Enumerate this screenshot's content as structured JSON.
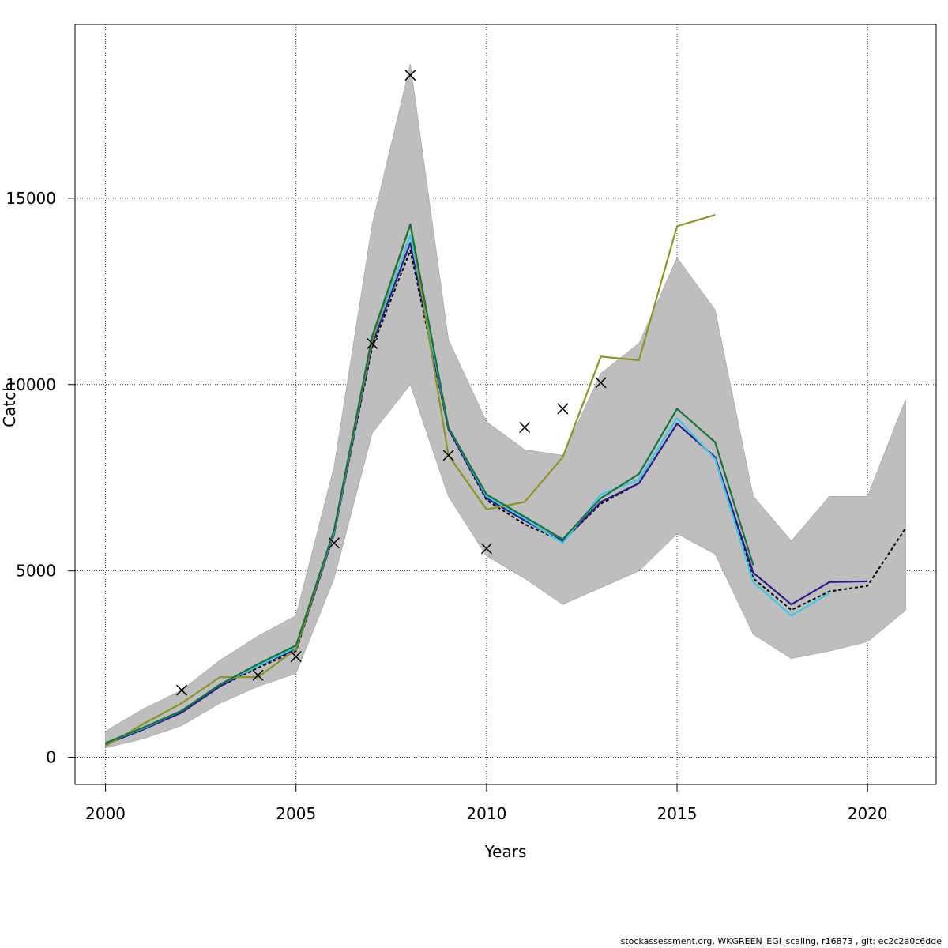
{
  "chart_data": {
    "type": "line",
    "xlabel": "Years",
    "ylabel": "Catch",
    "xlim": [
      1999.2,
      2021.8
    ],
    "ylim": [
      -730,
      19660
    ],
    "x_ticks": [
      "2000",
      "2005",
      "2010",
      "2015",
      "2020"
    ],
    "y_ticks": [
      "0",
      "5000",
      "10000",
      "15000"
    ],
    "grid": true,
    "band": {
      "color": "#bebebe",
      "x": [
        2000,
        2001,
        2002,
        2003,
        2004,
        2005,
        2006,
        2007,
        2008,
        2009,
        2010,
        2011,
        2012,
        2013,
        2014,
        2015,
        2016,
        2017,
        2018,
        2019,
        2020,
        2021
      ],
      "upper": [
        700,
        1300,
        1800,
        2600,
        3250,
        3800,
        7800,
        14300,
        18600,
        11200,
        9000,
        8250,
        8100,
        10300,
        11100,
        13400,
        12000,
        7000,
        5800,
        7000,
        7000,
        9600
      ],
      "lower": [
        250,
        500,
        850,
        1450,
        1900,
        2250,
        4800,
        8700,
        10000,
        7000,
        5400,
        4800,
        4100,
        4550,
        5000,
        6000,
        5450,
        3300,
        2650,
        2850,
        3100,
        3950
      ]
    },
    "observed": {
      "marker": "x",
      "x": [
        2002,
        2004,
        2005,
        2006,
        2007,
        2008,
        2009,
        2010,
        2011,
        2012,
        2013
      ],
      "y": [
        1800,
        2200,
        2700,
        5750,
        11100,
        18300,
        8100,
        5600,
        8850,
        9350,
        10050
      ]
    },
    "series": [
      {
        "color": "#000000",
        "dashed": true,
        "x": [
          2000,
          2001,
          2002,
          2003,
          2004,
          2005,
          2006,
          2007,
          2008,
          2009,
          2010,
          2011,
          2012,
          2013,
          2014,
          2015,
          2016,
          2017,
          2018,
          2019,
          2020,
          2021
        ],
        "y": [
          350,
          750,
          1200,
          1900,
          2400,
          2850,
          6000,
          11000,
          13600,
          8800,
          6900,
          6250,
          5800,
          6800,
          7350,
          8950,
          8050,
          4800,
          3950,
          4450,
          4600,
          6150
        ]
      },
      {
        "color": "#2a1a8c",
        "x": [
          2000,
          2001,
          2002,
          2003,
          2004,
          2005,
          2006,
          2007,
          2008,
          2009,
          2010,
          2011,
          2012,
          2013,
          2014,
          2015,
          2016,
          2017,
          2018,
          2019,
          2020
        ],
        "y": [
          350,
          750,
          1200,
          1900,
          2450,
          2900,
          6000,
          11100,
          13800,
          8800,
          6950,
          6350,
          5800,
          6850,
          7350,
          8950,
          8050,
          4950,
          4100,
          4700,
          4720
        ]
      },
      {
        "color": "#3ec7e6",
        "x": [
          2000,
          2001,
          2002,
          2003,
          2004,
          2005,
          2006,
          2007,
          2008,
          2009,
          2010,
          2011,
          2012,
          2013,
          2014,
          2015,
          2016,
          2017,
          2018,
          2019
        ],
        "y": [
          380,
          780,
          1250,
          1950,
          2450,
          2950,
          6050,
          11200,
          14000,
          8850,
          7000,
          6400,
          5750,
          7050,
          7450,
          9100,
          8000,
          4700,
          3800,
          4400
        ]
      },
      {
        "color": "#8b9426",
        "x": [
          2000,
          2001,
          2002,
          2003,
          2004,
          2005,
          2006,
          2007,
          2008,
          2009,
          2010,
          2011,
          2012,
          2013,
          2014,
          2015,
          2016
        ],
        "y": [
          300,
          900,
          1450,
          2150,
          2150,
          2900,
          6100,
          11200,
          14300,
          8100,
          6650,
          6850,
          8050,
          10750,
          10650,
          14250,
          14550
        ]
      },
      {
        "color": "#17733a",
        "x": [
          2000,
          2001,
          2002,
          2003,
          2004,
          2005,
          2006,
          2007,
          2008,
          2009,
          2010,
          2011,
          2012,
          2013,
          2014,
          2015,
          2016,
          2017
        ],
        "y": [
          380,
          800,
          1250,
          1950,
          2500,
          3000,
          6100,
          11300,
          14300,
          8850,
          7050,
          6450,
          5850,
          6950,
          7600,
          9350,
          8450,
          5150
        ]
      }
    ]
  },
  "footer": "stockassessment.org, WKGREEN_EGI_scaling, r16873 , git: ec2c2a0c6dde"
}
